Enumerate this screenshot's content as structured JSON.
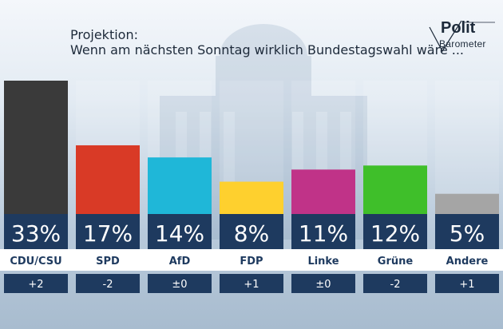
{
  "header": {
    "title": "Projektion:",
    "subtitle": "Wenn am nächsten Sonntag wirklich Bundestagswahl wäre ..."
  },
  "logo": {
    "line1": "Polit",
    "line2": "Barometer"
  },
  "colors": {
    "label_strip": "#1e3a5f",
    "change_box": "#1e3a5f"
  },
  "chart_data": {
    "type": "bar",
    "title": "Projektion: Wenn am nächsten Sonntag wirklich Bundestagswahl wäre ...",
    "categories": [
      "CDU/CSU",
      "SPD",
      "AfD",
      "FDP",
      "Linke",
      "Grüne",
      "Andere"
    ],
    "values": [
      33,
      17,
      14,
      8,
      11,
      12,
      5
    ],
    "value_labels": [
      "33%",
      "17%",
      "14%",
      "8%",
      "11%",
      "12%",
      "5%"
    ],
    "changes": [
      "+2",
      "-2",
      "±0",
      "+1",
      "±0",
      "-2",
      "+1"
    ],
    "bar_colors": [
      "#3a3a3a",
      "#d93a26",
      "#1fb7d8",
      "#fed02e",
      "#c03388",
      "#3fbf2a",
      "#a5a5a5"
    ],
    "ylim": [
      0,
      33
    ],
    "xlabel": "",
    "ylabel": ""
  }
}
